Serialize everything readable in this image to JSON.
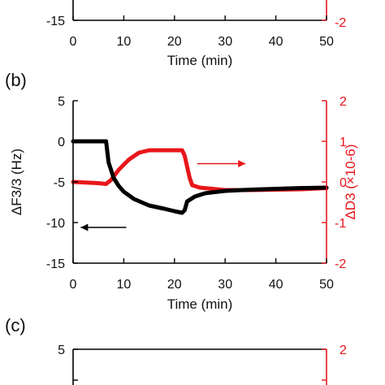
{
  "chart_data": [
    {
      "panel": "",
      "type": "line",
      "xlabel": "Time (min)",
      "xlim": [
        0,
        50
      ],
      "x_ticks": [
        "0",
        "10",
        "20",
        "30",
        "40",
        "50"
      ],
      "left_ticks": [
        "-15"
      ],
      "right_ticks": [
        "-2"
      ]
    },
    {
      "panel": "(b)",
      "type": "line",
      "xlabel": "Time (min)",
      "ylabel_left": "ΔF3/3 (Hz)",
      "ylabel_right": "ΔD3 (×10-6)",
      "xlim": [
        0,
        50
      ],
      "ylim_left": [
        -15,
        5
      ],
      "ylim_right": [
        -2,
        2
      ],
      "x_ticks": [
        "0",
        "10",
        "20",
        "30",
        "40",
        "50"
      ],
      "left_ticks": [
        "5",
        "0",
        "-5",
        "-10",
        "-15"
      ],
      "right_ticks": [
        "2",
        "1",
        "0",
        "-1",
        "-2"
      ],
      "series": [
        {
          "axis": "left",
          "color": "#000000",
          "x": [
            0,
            6.5,
            7,
            8,
            9,
            10,
            12,
            15,
            18,
            20,
            21.5,
            22,
            22.5,
            24,
            26,
            30,
            35,
            40,
            45,
            50
          ],
          "y": [
            0,
            0,
            -2.6,
            -4.5,
            -5.5,
            -6.2,
            -7.1,
            -7.9,
            -8.3,
            -8.6,
            -8.8,
            -8.5,
            -7.4,
            -6.8,
            -6.4,
            -6.1,
            -5.95,
            -5.85,
            -5.75,
            -5.7
          ]
        },
        {
          "axis": "right",
          "color": "#e8161b",
          "x": [
            0,
            5,
            6.5,
            7.5,
            9,
            11,
            13,
            15,
            17,
            19,
            21.5,
            22,
            23,
            23.5,
            25,
            30,
            35,
            40,
            45,
            50
          ],
          "y": [
            0,
            -0.03,
            -0.05,
            0.05,
            0.3,
            0.55,
            0.72,
            0.78,
            0.78,
            0.78,
            0.78,
            0.65,
            0.1,
            -0.08,
            -0.14,
            -0.2,
            -0.2,
            -0.19,
            -0.18,
            -0.15
          ]
        }
      ],
      "annotations": [
        {
          "type": "arrow",
          "direction": "left",
          "color": "#000000",
          "axis": "left",
          "x_from": 10.5,
          "x_to": 1.5,
          "y": -10.6
        },
        {
          "type": "arrow",
          "direction": "right",
          "color": "#e8161b",
          "axis": "right",
          "x_from": 24.5,
          "x_to": 34,
          "y": 0.45
        }
      ]
    },
    {
      "panel": "(c)",
      "type": "line",
      "ylim_left": [
        -15,
        5
      ],
      "ylim_right": [
        -2,
        2
      ],
      "left_ticks": [
        "5"
      ],
      "right_ticks": [
        "2"
      ]
    }
  ]
}
